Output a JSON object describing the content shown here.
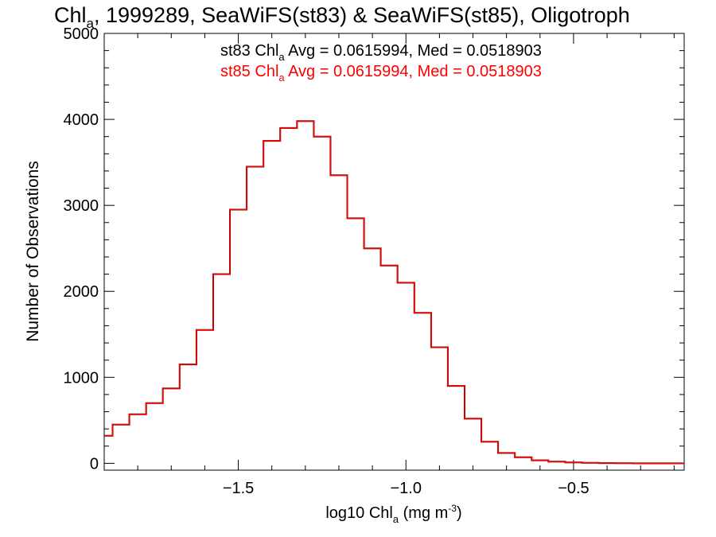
{
  "chart_data": {
    "type": "line",
    "title": {
      "prefix": "Chl",
      "sub": "a",
      "rest": ", 1999289, SeaWiFS(st83) & SeaWiFS(st85), Oligotroph"
    },
    "xlabel": {
      "prefix": "log10 Chl",
      "sub": "a",
      "mid": " (mg m",
      "sup": "-3",
      "suffix": ")"
    },
    "ylabel": "Number of Observations",
    "xlim": [
      -1.9,
      -0.17
    ],
    "ylim": [
      -80,
      5000
    ],
    "xticks": [
      {
        "value": -1.5,
        "label": "−1.5"
      },
      {
        "value": -1.0,
        "label": "−1.0"
      },
      {
        "value": -0.5,
        "label": "−0.5"
      }
    ],
    "yticks": [
      {
        "value": 0,
        "label": "0"
      },
      {
        "value": 1000,
        "label": "1000"
      },
      {
        "value": 2000,
        "label": "2000"
      },
      {
        "value": 3000,
        "label": "3000"
      },
      {
        "value": 4000,
        "label": "4000"
      },
      {
        "value": 5000,
        "label": "5000"
      }
    ],
    "annotations": [
      {
        "station": "st83",
        "chl": "Chl",
        "sub": "a",
        "stats": " Avg = 0.0615994, Med = 0.0518903",
        "color": "#000000"
      },
      {
        "station": "st85",
        "chl": "Chl",
        "sub": "a",
        "stats": " Avg = 0.0615994, Med = 0.0518903",
        "color": "#ff0000"
      }
    ],
    "series": [
      {
        "station": "st83",
        "color": "#000000",
        "x": [
          -1.9,
          -1.85,
          -1.8,
          -1.75,
          -1.7,
          -1.65,
          -1.6,
          -1.55,
          -1.5,
          -1.45,
          -1.4,
          -1.35,
          -1.3,
          -1.25,
          -1.2,
          -1.15,
          -1.1,
          -1.05,
          -1.0,
          -0.95,
          -0.9,
          -0.85,
          -0.8,
          -0.75,
          -0.7,
          -0.65,
          -0.6,
          -0.55,
          -0.5,
          -0.45,
          -0.4,
          -0.35,
          -0.3,
          -0.25,
          -0.2,
          -0.17
        ],
        "y": [
          320,
          450,
          570,
          700,
          870,
          1150,
          1550,
          2200,
          2950,
          3450,
          3750,
          3900,
          3980,
          3800,
          3350,
          2850,
          2500,
          2300,
          2100,
          1750,
          1350,
          900,
          520,
          250,
          120,
          70,
          35,
          20,
          10,
          5,
          2,
          1,
          0,
          0,
          0,
          0
        ]
      },
      {
        "station": "st85",
        "color": "#ff0000",
        "x": [
          -1.9,
          -1.85,
          -1.8,
          -1.75,
          -1.7,
          -1.65,
          -1.6,
          -1.55,
          -1.5,
          -1.45,
          -1.4,
          -1.35,
          -1.3,
          -1.25,
          -1.2,
          -1.15,
          -1.1,
          -1.05,
          -1.0,
          -0.95,
          -0.9,
          -0.85,
          -0.8,
          -0.75,
          -0.7,
          -0.65,
          -0.6,
          -0.55,
          -0.5,
          -0.45,
          -0.4,
          -0.35,
          -0.3,
          -0.25,
          -0.2,
          -0.17
        ],
        "y": [
          320,
          450,
          570,
          700,
          870,
          1150,
          1550,
          2200,
          2950,
          3450,
          3750,
          3900,
          3980,
          3800,
          3350,
          2850,
          2500,
          2300,
          2100,
          1750,
          1350,
          900,
          520,
          250,
          120,
          70,
          35,
          20,
          10,
          5,
          2,
          1,
          0,
          0,
          0,
          0
        ]
      }
    ]
  }
}
